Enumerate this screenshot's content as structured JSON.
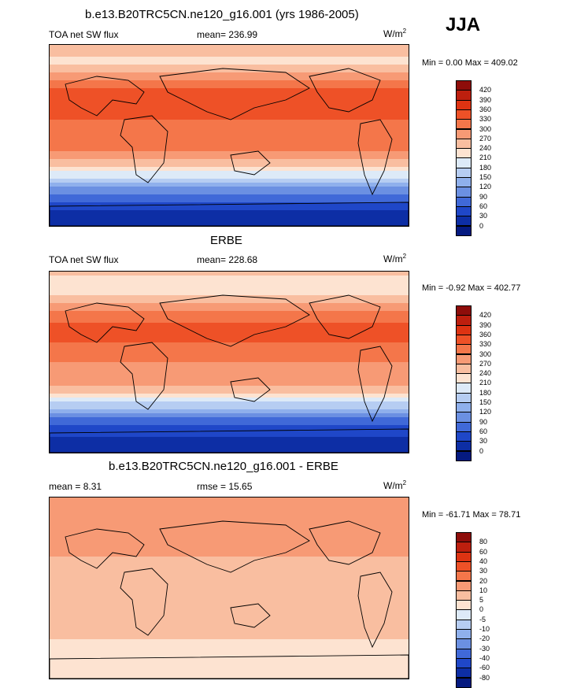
{
  "season": "JJA",
  "panels": [
    {
      "title": "b.e13.B20TRC5CN.ne120_g16.001 (yrs 1986-2005)",
      "left_label": "TOA net SW flux",
      "center_label": "mean= 236.99",
      "units": "W/m",
      "units_sup": "2",
      "minmax": "Min =   0.00 Max = 409.02"
    },
    {
      "title": "ERBE",
      "left_label": "TOA net SW flux",
      "center_label": "mean= 228.68",
      "units": "W/m",
      "units_sup": "2",
      "minmax": "Min =  -0.92 Max = 402.77"
    },
    {
      "title": "b.e13.B20TRC5CN.ne120_g16.001 - ERBE",
      "left_label": "mean =   8.31",
      "center_label": "rmse =  15.65",
      "units": "W/m",
      "units_sup": "2",
      "minmax": "Min = -61.71 Max =  78.71"
    }
  ],
  "chart_data": [
    {
      "type": "heatmap",
      "title": "b.e13.B20TRC5CN.ne120_g16.001 (yrs 1986-2005)",
      "variable": "TOA net SW flux",
      "units": "W/m2",
      "mean": 236.99,
      "min": 0.0,
      "max": 409.02,
      "colorbar_levels": [
        "420",
        "390",
        "360",
        "330",
        "300",
        "270",
        "240",
        "210",
        "180",
        "150",
        "120",
        "90",
        "60",
        "30",
        "0"
      ],
      "colorbar_colors": [
        "#8e0d0a",
        "#bd1f0e",
        "#dd3312",
        "#ee5127",
        "#f4764a",
        "#f79a75",
        "#f9bea0",
        "#fde3d1",
        "#ddeaf8",
        "#b6cdf2",
        "#8fb0ec",
        "#6b90e2",
        "#4069d8",
        "#1f47c8",
        "#0d2ea5",
        "#051a80"
      ],
      "latitude_profile": [
        {
          "lat": 90,
          "value": 270
        },
        {
          "lat": 75,
          "value": 230
        },
        {
          "lat": 60,
          "value": 285
        },
        {
          "lat": 45,
          "value": 330
        },
        {
          "lat": 30,
          "value": 355
        },
        {
          "lat": 15,
          "value": 330
        },
        {
          "lat": 0,
          "value": 315
        },
        {
          "lat": -15,
          "value": 305
        },
        {
          "lat": -30,
          "value": 250
        },
        {
          "lat": -45,
          "value": 165
        },
        {
          "lat": -60,
          "value": 75
        },
        {
          "lat": -75,
          "value": 30
        },
        {
          "lat": -90,
          "value": 0
        }
      ]
    },
    {
      "type": "heatmap",
      "title": "ERBE",
      "variable": "TOA net SW flux",
      "units": "W/m2",
      "mean": 228.68,
      "min": -0.92,
      "max": 402.77,
      "colorbar_levels": [
        "420",
        "390",
        "360",
        "330",
        "300",
        "270",
        "240",
        "210",
        "180",
        "150",
        "120",
        "90",
        "60",
        "30",
        "0"
      ],
      "colorbar_colors": [
        "#8e0d0a",
        "#bd1f0e",
        "#dd3312",
        "#ee5127",
        "#f4764a",
        "#f79a75",
        "#f9bea0",
        "#fde3d1",
        "#ddeaf8",
        "#b6cdf2",
        "#8fb0ec",
        "#6b90e2",
        "#4069d8",
        "#1f47c8",
        "#0d2ea5",
        "#051a80"
      ],
      "latitude_profile": [
        {
          "lat": 90,
          "value": 255
        },
        {
          "lat": 75,
          "value": 215
        },
        {
          "lat": 60,
          "value": 270
        },
        {
          "lat": 45,
          "value": 320
        },
        {
          "lat": 30,
          "value": 345
        },
        {
          "lat": 15,
          "value": 320
        },
        {
          "lat": 0,
          "value": 300
        },
        {
          "lat": -15,
          "value": 295
        },
        {
          "lat": -30,
          "value": 240
        },
        {
          "lat": -45,
          "value": 155
        },
        {
          "lat": -60,
          "value": 70
        },
        {
          "lat": -75,
          "value": 25
        },
        {
          "lat": -90,
          "value": 0
        }
      ]
    },
    {
      "type": "heatmap",
      "title": "b.e13.B20TRC5CN.ne120_g16.001 - ERBE",
      "units": "W/m2",
      "mean": 8.31,
      "rmse": 15.65,
      "min": -61.71,
      "max": 78.71,
      "colorbar_levels": [
        "80",
        "60",
        "40",
        "30",
        "20",
        "10",
        "5",
        "0",
        "-5",
        "-10",
        "-20",
        "-30",
        "-40",
        "-60",
        "-80"
      ],
      "colorbar_colors": [
        "#8e0d0a",
        "#bd1f0e",
        "#dd3312",
        "#ee5127",
        "#f4764a",
        "#f79a75",
        "#f9bea0",
        "#fde3d1",
        "#ddeaf8",
        "#b6cdf2",
        "#8fb0ec",
        "#6b90e2",
        "#4069d8",
        "#1f47c8",
        "#0d2ea5",
        "#051a80"
      ],
      "latitude_profile": [
        {
          "lat": 90,
          "value": 10
        },
        {
          "lat": 75,
          "value": 20
        },
        {
          "lat": 60,
          "value": 15
        },
        {
          "lat": 45,
          "value": 12
        },
        {
          "lat": 30,
          "value": 10
        },
        {
          "lat": 15,
          "value": 8
        },
        {
          "lat": 0,
          "value": 5
        },
        {
          "lat": -15,
          "value": 7
        },
        {
          "lat": -30,
          "value": 8
        },
        {
          "lat": -45,
          "value": 6
        },
        {
          "lat": -60,
          "value": 3
        },
        {
          "lat": -75,
          "value": 4
        },
        {
          "lat": -90,
          "value": 2
        }
      ]
    }
  ]
}
